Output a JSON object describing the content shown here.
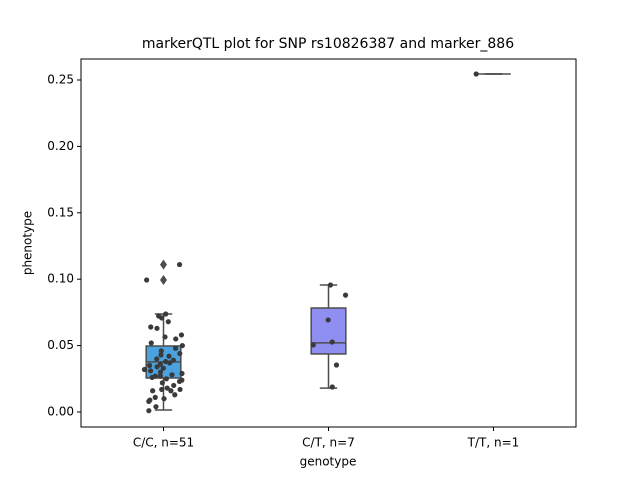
{
  "chart_data": {
    "type": "box",
    "title": "markerQTL plot for SNP rs10826387 and marker_886",
    "x_label": "genotype",
    "y_label": "phenotype",
    "categories": [
      "C/C, n=51",
      "C/T, n=7",
      "T/T, n=1"
    ],
    "colors": [
      "#4aa3df",
      "#8f8ff2",
      "#a3a3a3"
    ],
    "ylim": [
      -0.0113,
      0.2658
    ],
    "yticks": [
      {
        "value": 0,
        "label": "0.00"
      },
      {
        "value": 0.05,
        "label": "0.05"
      },
      {
        "value": 0.1,
        "label": "0.10"
      },
      {
        "value": 0.15,
        "label": "0.15"
      },
      {
        "value": 0.2,
        "label": "0.20"
      },
      {
        "value": 0.25,
        "label": "0.25"
      }
    ],
    "boxes": [
      {
        "low": 0.0015,
        "q1": 0.0256,
        "median": 0.0377,
        "q3": 0.0497,
        "high": 0.0738,
        "outliers": [
          0.111,
          0.0994
        ]
      },
      {
        "low": 0.018,
        "q1": 0.0437,
        "median": 0.052,
        "q3": 0.0783,
        "high": 0.0956,
        "outliers": []
      },
      {
        "low": 0.2545,
        "q1": 0.2545,
        "median": 0.2545,
        "q3": 0.2545,
        "high": 0.2545,
        "outliers": []
      }
    ],
    "points": [
      [
        0.111,
        0.0994,
        0.0738,
        0.0723,
        0.0708,
        0.068,
        0.064,
        0.063,
        0.0565,
        0.058,
        0.055,
        0.052,
        0.05,
        0.048,
        0.046,
        0.044,
        0.043,
        0.042,
        0.04,
        0.039,
        0.038,
        0.037,
        0.036,
        0.035,
        0.034,
        0.033,
        0.032,
        0.031,
        0.03,
        0.029,
        0.028,
        0.027,
        0.027,
        0.026,
        0.025,
        0.024,
        0.023,
        0.022,
        0.02,
        0.018,
        0.017,
        0.017,
        0.016,
        0.016,
        0.013,
        0.011,
        0.01,
        0.009,
        0.008,
        0.004,
        0.001
      ],
      [
        0.0188,
        0.088,
        0.0956,
        0.0527,
        0.0693,
        0.0505,
        0.0354
      ],
      [
        0.2545
      ]
    ]
  }
}
